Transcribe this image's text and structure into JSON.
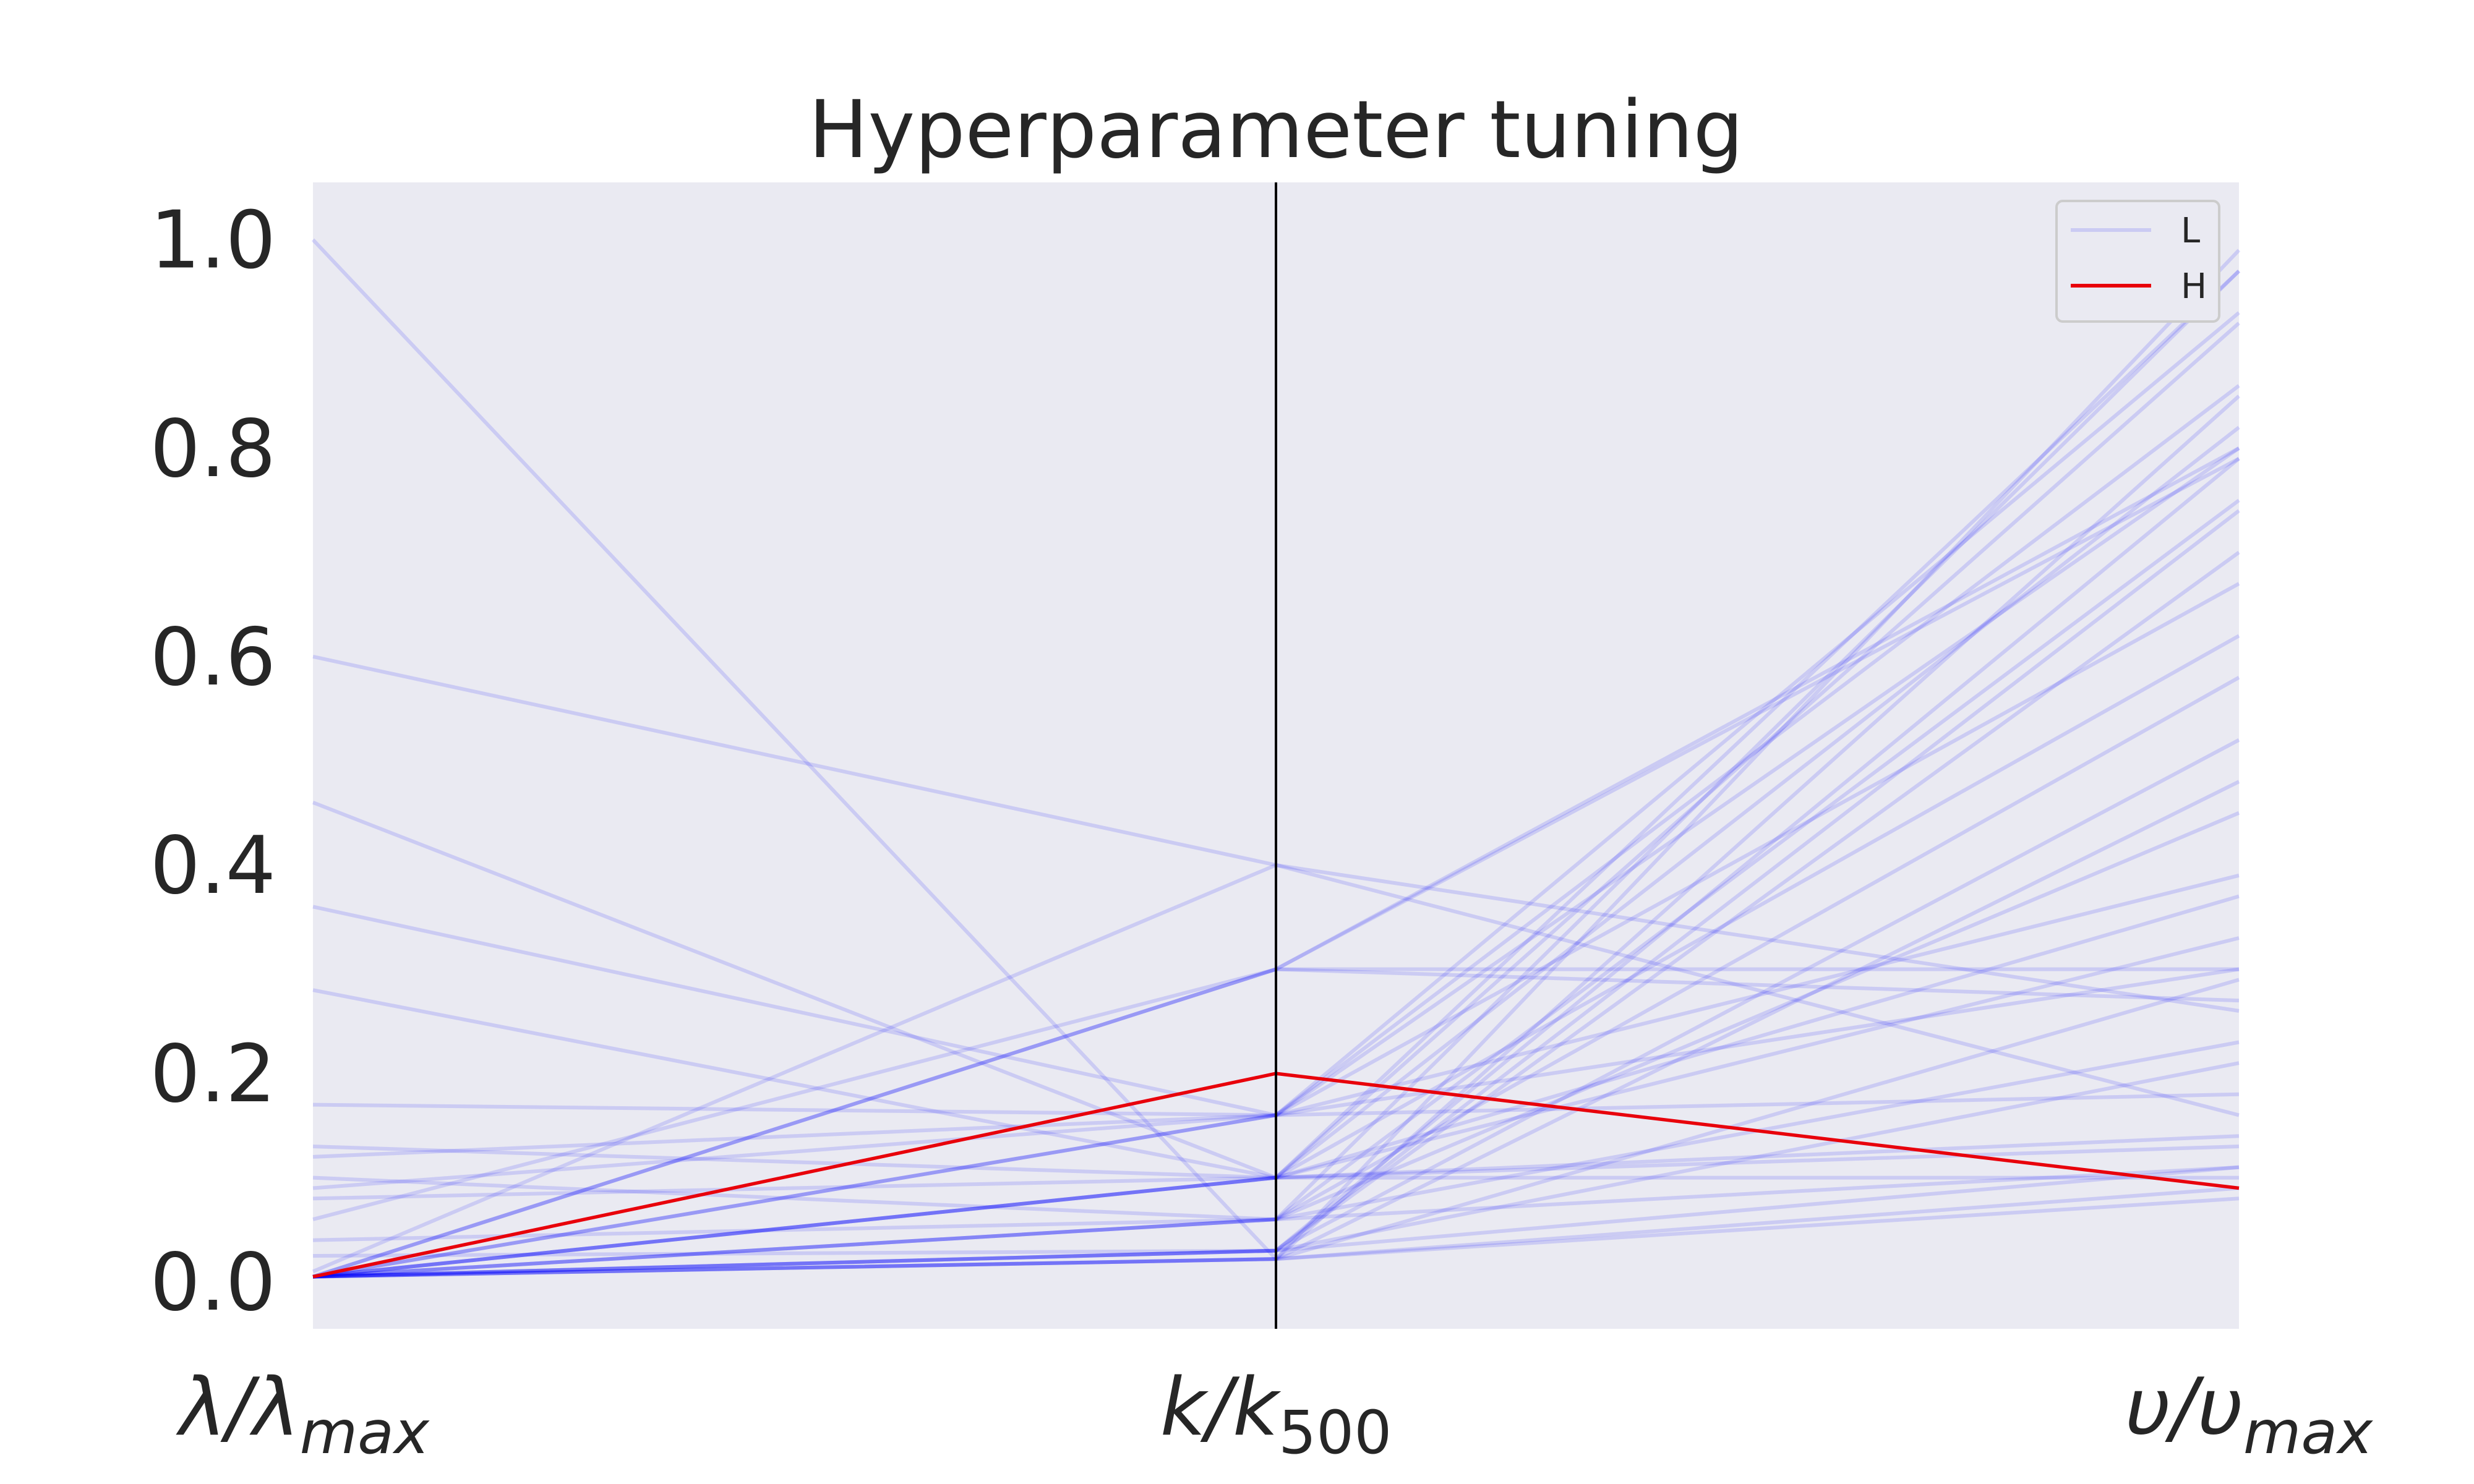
{
  "chart_data": {
    "type": "parallel_coordinates",
    "title": "Hyperparameter tuning",
    "axes": [
      {
        "label": "λ/λ",
        "sub": "max"
      },
      {
        "label": "k/k",
        "sub": "500"
      },
      {
        "label": "υ/υ",
        "sub": "max"
      }
    ],
    "ylim": [
      -0.045,
      1.055
    ],
    "yticks": [
      {
        "value": 0.0,
        "label": "0.0"
      },
      {
        "value": 0.2,
        "label": "0.2"
      },
      {
        "value": 0.4,
        "label": "0.4"
      },
      {
        "value": 0.6,
        "label": "0.6"
      },
      {
        "value": 0.8,
        "label": "0.8"
      },
      {
        "value": 1.0,
        "label": "1.0"
      }
    ],
    "grid": false,
    "background": "#eaeaf2",
    "legend": {
      "placement": "top-right",
      "entries": [
        {
          "name": "L",
          "color": "#0000ff",
          "opacity": 0.13
        },
        {
          "name": "H",
          "color": "#e8000b",
          "opacity": 1.0
        }
      ]
    },
    "series": [
      {
        "name": "L",
        "color": "#0000ff",
        "opacity": 0.13,
        "lines": [
          [
            1.0,
            0.022,
            0.99
          ],
          [
            0.6,
            0.4,
            0.16
          ],
          [
            0.46,
            0.1,
            0.1
          ],
          [
            0.36,
            0.16,
            0.3
          ],
          [
            0.28,
            0.1,
            0.97
          ],
          [
            0.17,
            0.16,
            0.93
          ],
          [
            0.13,
            0.1,
            0.13
          ],
          [
            0.12,
            0.16,
            0.8
          ],
          [
            0.1,
            0.06,
            0.75
          ],
          [
            0.09,
            0.16,
            0.86
          ],
          [
            0.08,
            0.1,
            0.37
          ],
          [
            0.06,
            0.3,
            0.3
          ],
          [
            0.04,
            0.06,
            0.58
          ],
          [
            0.025,
            0.03,
            0.52
          ],
          [
            0.01,
            0.4,
            0.26
          ],
          [
            0.005,
            0.3,
            0.8
          ],
          [
            0.005,
            0.16,
            0.18
          ],
          [
            0.005,
            0.1,
            0.82
          ],
          [
            0.005,
            0.06,
            0.97
          ],
          [
            0.005,
            0.03,
            0.79
          ],
          [
            0.005,
            0.022,
            0.48
          ],
          [
            0.005,
            0.03,
            0.74
          ],
          [
            0.005,
            0.022,
            0.29
          ],
          [
            0.005,
            0.1,
            0.14
          ],
          [
            0.005,
            0.16,
            0.67
          ],
          [
            0.005,
            0.06,
            0.11
          ],
          [
            0.005,
            0.3,
            0.27
          ],
          [
            0.005,
            0.03,
            0.11
          ],
          [
            0.005,
            0.022,
            0.09
          ],
          [
            0.005,
            0.1,
            0.33
          ],
          [
            0.005,
            0.06,
            0.23
          ],
          [
            0.005,
            0.16,
            0.39
          ],
          [
            0.005,
            0.03,
            0.7
          ],
          [
            0.005,
            0.022,
            0.85
          ],
          [
            0.005,
            0.1,
            0.62
          ],
          [
            0.005,
            0.06,
            0.45
          ],
          [
            0.005,
            0.022,
            0.08
          ],
          [
            0.005,
            0.3,
            0.79
          ],
          [
            0.005,
            0.1,
            0.92
          ],
          [
            0.005,
            0.03,
            0.21
          ]
        ]
      },
      {
        "name": "H",
        "color": "#e8000b",
        "opacity": 1.0,
        "lines": [
          [
            0.005,
            0.2,
            0.09
          ]
        ]
      }
    ]
  }
}
